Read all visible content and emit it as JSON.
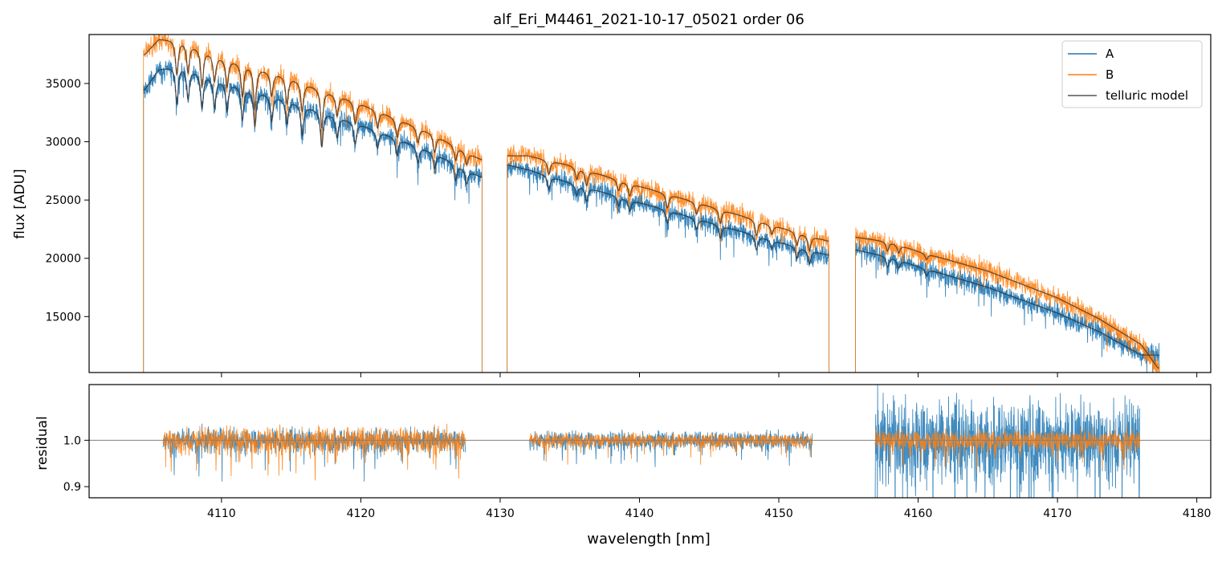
{
  "figure_title": "alf_Eri_M4461_2021-10-17_05021  order 06",
  "colors": {
    "A": "#1f77b4",
    "B": "#ff7f0e",
    "model": "#333333",
    "ref": "#808080"
  },
  "chart_data": [
    {
      "type": "line",
      "name": "spectrum",
      "title": "alf_Eri_M4461_2021-10-17_05021  order 06",
      "xlabel": "",
      "ylabel": "flux [ADU]",
      "xlim": [
        4100.5,
        4181
      ],
      "ylim": [
        10200,
        39200
      ],
      "yticks": [
        15000,
        20000,
        25000,
        30000,
        35000
      ],
      "ytick_labels": [
        "15000",
        "20000",
        "25000",
        "30000",
        "35000"
      ],
      "xticks": [
        4110,
        4120,
        4130,
        4140,
        4150,
        4160,
        4170,
        4180
      ],
      "legend": {
        "placement": "top-right",
        "entries": [
          "A",
          "B",
          "telluric model"
        ]
      },
      "segments": [
        {
          "x_start": 4104.4,
          "x_end": 4128.7,
          "A_continuum": [
            [
              4104.5,
              34500
            ],
            [
              4105.5,
              36200
            ],
            [
              4107,
              36600
            ],
            [
              4110,
              35300
            ],
            [
              4115,
              33500
            ],
            [
              4120,
              31500
            ],
            [
              4125,
              29200
            ],
            [
              4128.6,
              27000
            ]
          ],
          "B_continuum": [
            [
              4104.5,
              37500
            ],
            [
              4105.5,
              38800
            ],
            [
              4107,
              38800
            ],
            [
              4110,
              37300
            ],
            [
              4115,
              35500
            ],
            [
              4120,
              33300
            ],
            [
              4125,
              30800
            ],
            [
              4128.6,
              28500
            ]
          ],
          "A_lines": [
            [
              4106.8,
              3200
            ],
            [
              4107.6,
              2600
            ],
            [
              4108.6,
              3000
            ],
            [
              4109.5,
              2500
            ],
            [
              4110.4,
              2400
            ],
            [
              4111.5,
              2800
            ],
            [
              4112.4,
              3000
            ],
            [
              4113.6,
              2200
            ],
            [
              4114.7,
              2000
            ],
            [
              4115.8,
              2600
            ],
            [
              4117.2,
              3000
            ],
            [
              4118.3,
              1800
            ],
            [
              4119.6,
              1800
            ],
            [
              4121.2,
              1500
            ],
            [
              4122.6,
              1500
            ],
            [
              4124.1,
              1400
            ],
            [
              4125.3,
              1300
            ],
            [
              4126.8,
              1400
            ],
            [
              4127.6,
              1200
            ]
          ],
          "B_lines": [
            [
              4106.8,
              3000
            ],
            [
              4107.6,
              2500
            ],
            [
              4108.6,
              3200
            ],
            [
              4109.5,
              2300
            ],
            [
              4110.4,
              2400
            ],
            [
              4111.5,
              2800
            ],
            [
              4112.4,
              3600
            ],
            [
              4113.6,
              2000
            ],
            [
              4114.7,
              2300
            ],
            [
              4115.8,
              2500
            ],
            [
              4117.2,
              3300
            ],
            [
              4118.3,
              1800
            ],
            [
              4119.6,
              1900
            ],
            [
              4121.2,
              1500
            ],
            [
              4122.6,
              1600
            ],
            [
              4124.1,
              1300
            ],
            [
              4125.3,
              1500
            ],
            [
              4126.8,
              1200
            ],
            [
              4127.6,
              1100
            ]
          ]
        },
        {
          "x_start": 4130.5,
          "x_end": 4153.6,
          "A_continuum": [
            [
              4130.6,
              28000
            ],
            [
              4132,
              27600
            ],
            [
              4135,
              26500
            ],
            [
              4140,
              24800
            ],
            [
              4145,
              23100
            ],
            [
              4150,
              21400
            ],
            [
              4153.5,
              20300
            ]
          ],
          "B_continuum": [
            [
              4130.6,
              28800
            ],
            [
              4132,
              28800
            ],
            [
              4135,
              28000
            ],
            [
              4140,
              26200
            ],
            [
              4145,
              24500
            ],
            [
              4150,
              22700
            ],
            [
              4153.5,
              21500
            ]
          ],
          "A_lines": [
            [
              4133.5,
              1100
            ],
            [
              4135.5,
              900
            ],
            [
              4136.2,
              1200
            ],
            [
              4138.5,
              800
            ],
            [
              4139.3,
              1000
            ],
            [
              4142.0,
              1100
            ],
            [
              4144.1,
              900
            ],
            [
              4145.8,
              1100
            ],
            [
              4148.4,
              1200
            ],
            [
              4149.5,
              700
            ],
            [
              4151.3,
              1000
            ],
            [
              4152.2,
              1200
            ]
          ],
          "B_lines": [
            [
              4133.5,
              1200
            ],
            [
              4135.5,
              1000
            ],
            [
              4136.2,
              1300
            ],
            [
              4138.5,
              900
            ],
            [
              4139.3,
              1100
            ],
            [
              4142.0,
              1200
            ],
            [
              4144.1,
              1000
            ],
            [
              4145.8,
              1200
            ],
            [
              4148.4,
              1300
            ],
            [
              4149.5,
              800
            ],
            [
              4151.3,
              1100
            ],
            [
              4152.2,
              1300
            ]
          ]
        },
        {
          "x_start": 4155.5,
          "x_end": 4177.3,
          "A_continuum": [
            [
              4155.6,
              20700
            ],
            [
              4158,
              20100
            ],
            [
              4160,
              19300
            ],
            [
              4165,
              17500
            ],
            [
              4170,
              15300
            ],
            [
              4173,
              13700
            ],
            [
              4176,
              11700
            ]
          ],
          "B_continuum": [
            [
              4155.6,
              21800
            ],
            [
              4158,
              21400
            ],
            [
              4160,
              20600
            ],
            [
              4165,
              18900
            ],
            [
              4170,
              16600
            ],
            [
              4173,
              14800
            ],
            [
              4176,
              12600
            ],
            [
              4177.2,
              10600
            ]
          ],
          "A_lines": [
            [
              4157.8,
              900
            ],
            [
              4158.6,
              700
            ],
            [
              4160.6,
              600
            ]
          ],
          "B_lines": [
            [
              4157.8,
              800
            ],
            [
              4158.6,
              700
            ],
            [
              4160.6,
              500
            ]
          ]
        }
      ]
    },
    {
      "type": "line",
      "name": "residual",
      "title": "",
      "xlabel": "wavelength [nm]",
      "ylabel": "residual",
      "xlim": [
        4100.5,
        4181
      ],
      "ylim": [
        0.876,
        1.12
      ],
      "yticks": [
        0.9,
        1.0
      ],
      "ytick_labels": [
        "0.9",
        "1.0"
      ],
      "xticks": [
        4110,
        4120,
        4130,
        4140,
        4150,
        4160,
        4170,
        4180
      ],
      "xtick_labels": [
        "4110",
        "4120",
        "4130",
        "4140",
        "4150",
        "4160",
        "4170",
        "4180"
      ],
      "reference_line": 1.0,
      "segments": [
        {
          "x_start": 4105.8,
          "x_end": 4127.5,
          "A_scatter": 0.022,
          "B_scatter": 0.024
        },
        {
          "x_start": 4132.1,
          "x_end": 4152.4,
          "A_scatter": 0.016,
          "B_scatter": 0.013
        },
        {
          "x_start": 4156.9,
          "x_end": 4175.9,
          "A_scatter": 0.075,
          "B_scatter": 0.018
        }
      ]
    }
  ]
}
